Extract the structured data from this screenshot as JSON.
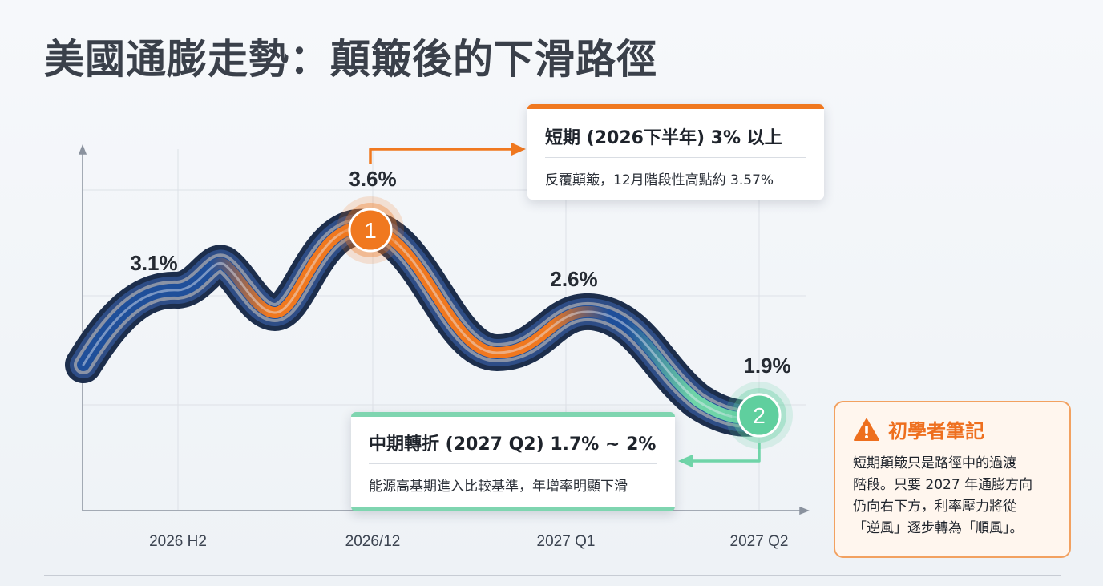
{
  "title": "美國通膨走勢：顛簸後的下滑路徑",
  "chart_data": {
    "type": "line",
    "x": [
      "2026 H2",
      "2026/12",
      "2027 Q1",
      "2027 Q2"
    ],
    "series": [
      {
        "points": [
          {
            "x": "2026 H2",
            "y": 3.1
          },
          {
            "x": "2026/12",
            "y": 3.6
          },
          {
            "x": "2027 Q1",
            "y": 2.6
          },
          {
            "x": "2027 Q2",
            "y": 1.9
          }
        ]
      }
    ],
    "data_labels": [
      "3.1%",
      "3.6%",
      "2.6%",
      "1.9%"
    ],
    "markers": [
      {
        "label": "1",
        "x": "2026/12",
        "y": 3.6,
        "color": "#f0781f"
      },
      {
        "label": "2",
        "x": "2027 Q2",
        "y": 1.9,
        "color": "#5fcf9e"
      }
    ],
    "grid": true,
    "colors": {
      "line_main": "#1f4f9a",
      "line_orange": "#f0781f",
      "line_green": "#6fd4a8"
    }
  },
  "callouts": {
    "short": {
      "title": "短期 (2026下半年) 3% 以上",
      "body": "反覆顛簸，12月階段性高點約 3.57%",
      "color": "#f0781f"
    },
    "mid": {
      "title": "中期轉折 (2027 Q2) 1.7% ~ 2%",
      "body": "能源高基期進入比較基準，年增率明顯下滑",
      "color": "#7fd5b0"
    }
  },
  "note": {
    "icon": "warning-icon",
    "title": "初學者筆記",
    "lines": [
      "短期顛簸只是路徑中的過渡",
      "階段。只要 2027 年通膨方向",
      "仍向右下方，利率壓力將從",
      "「逆風」逐步轉為「順風」。"
    ],
    "accent": "#ee6f1e"
  }
}
